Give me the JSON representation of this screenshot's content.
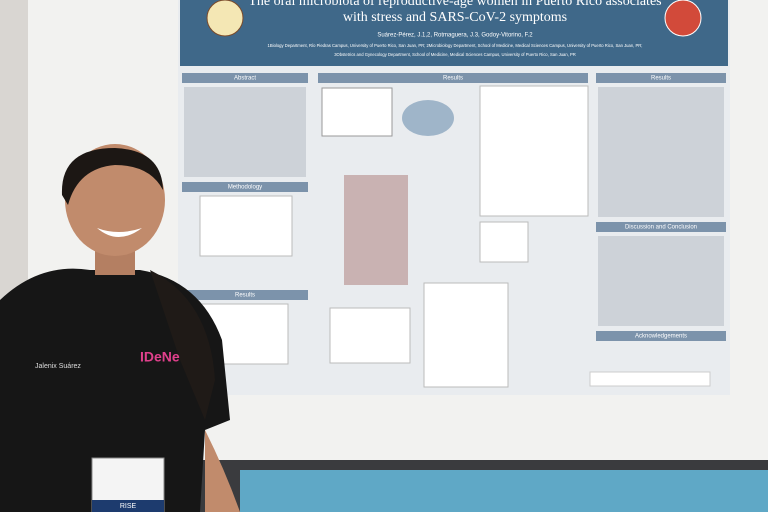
{
  "poster": {
    "title_line1": "The oral microbiota of reproductive-age women in Puerto Rico associates",
    "title_line2": "with stress and SARS-CoV-2 symptoms",
    "authors": "Suárez-Pérez, J.1,2, Rotmaguera, J.3, Godoy-Vitorino, F.2",
    "affiliations_line1": "1Biology Department, Río Piedras Campus, University of Puerto Rico, San Juan, PR; 2Microbiology Department, School of Medicine, Medical Sciences Campus, University of Puerto Rico, San Juan, PR;",
    "affiliations_line2": "3Obstetrics and Gynecology Department, School of Medicine, Medical Sciences Campus, University of Puerto Rico, San Juan, PR",
    "sections": [
      "Abstract",
      "Results",
      "Results",
      "Methodology",
      "Results",
      "Discussion and Conclusion",
      "Acknowledgements"
    ]
  },
  "person": {
    "shirt_name": "Jalenix Suárez",
    "shirt_logo": "IDeNe",
    "badge": "RISE"
  }
}
